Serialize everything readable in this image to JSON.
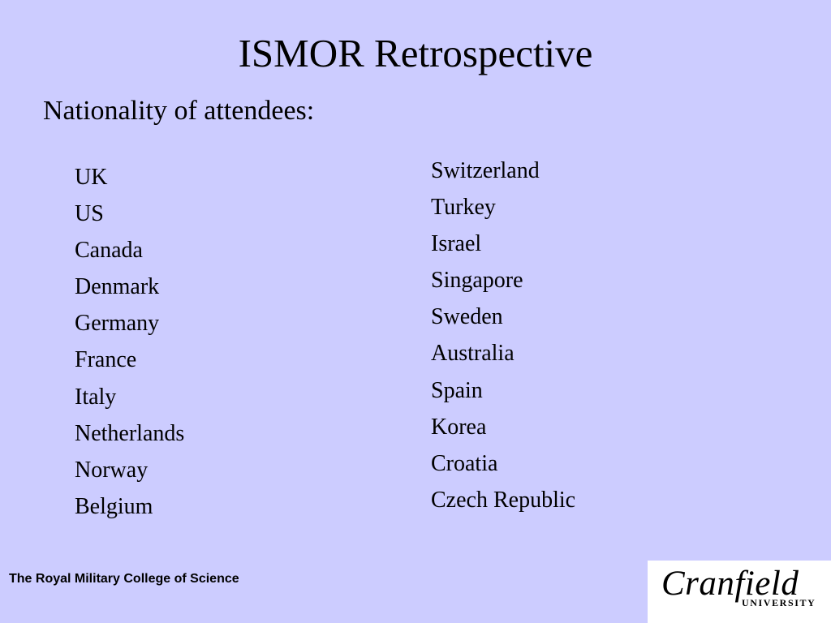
{
  "slide": {
    "title": "ISMOR Retrospective",
    "subtitle": "Nationality of attendees:"
  },
  "countries": {
    "left": [
      "UK",
      "US",
      "Canada",
      "Denmark",
      "Germany",
      "France",
      "Italy",
      "Netherlands",
      "Norway",
      "Belgium"
    ],
    "right": [
      "Switzerland",
      "Turkey",
      "Israel",
      "Singapore",
      "Sweden",
      "Australia",
      "Spain",
      "Korea",
      "Croatia",
      "Czech Republic"
    ]
  },
  "footer": {
    "institution": "The Royal Military College of Science"
  },
  "logo": {
    "word": "Cranfield",
    "sub": "UNIVERSITY"
  },
  "colors": {
    "background": "#ccccff",
    "logo_background": "#ffffff",
    "text": "#000000"
  }
}
